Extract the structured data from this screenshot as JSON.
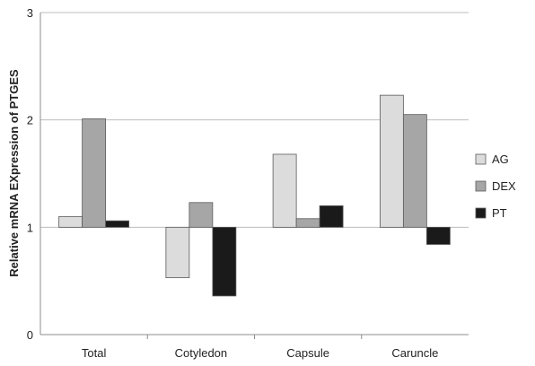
{
  "chart_data": {
    "type": "bar",
    "title": "",
    "xlabel": "",
    "ylabel": "Relative mRNA EXpression of PTGES",
    "ylim": [
      0,
      3
    ],
    "yticks": [
      0,
      1,
      2,
      3
    ],
    "baseline": 1,
    "grid": true,
    "legend_position": "right",
    "categories": [
      "Total",
      "Cotyledon",
      "Capsule",
      "Caruncle"
    ],
    "series": [
      {
        "name": "AG",
        "color": "#dcdcdc",
        "values": [
          1.1,
          0.53,
          1.68,
          2.23
        ]
      },
      {
        "name": "DEX",
        "color": "#a6a6a6",
        "values": [
          2.01,
          1.23,
          1.08,
          2.05
        ]
      },
      {
        "name": "PT",
        "color": "#1a1a1a",
        "values": [
          1.06,
          0.36,
          1.2,
          0.84
        ]
      }
    ]
  }
}
